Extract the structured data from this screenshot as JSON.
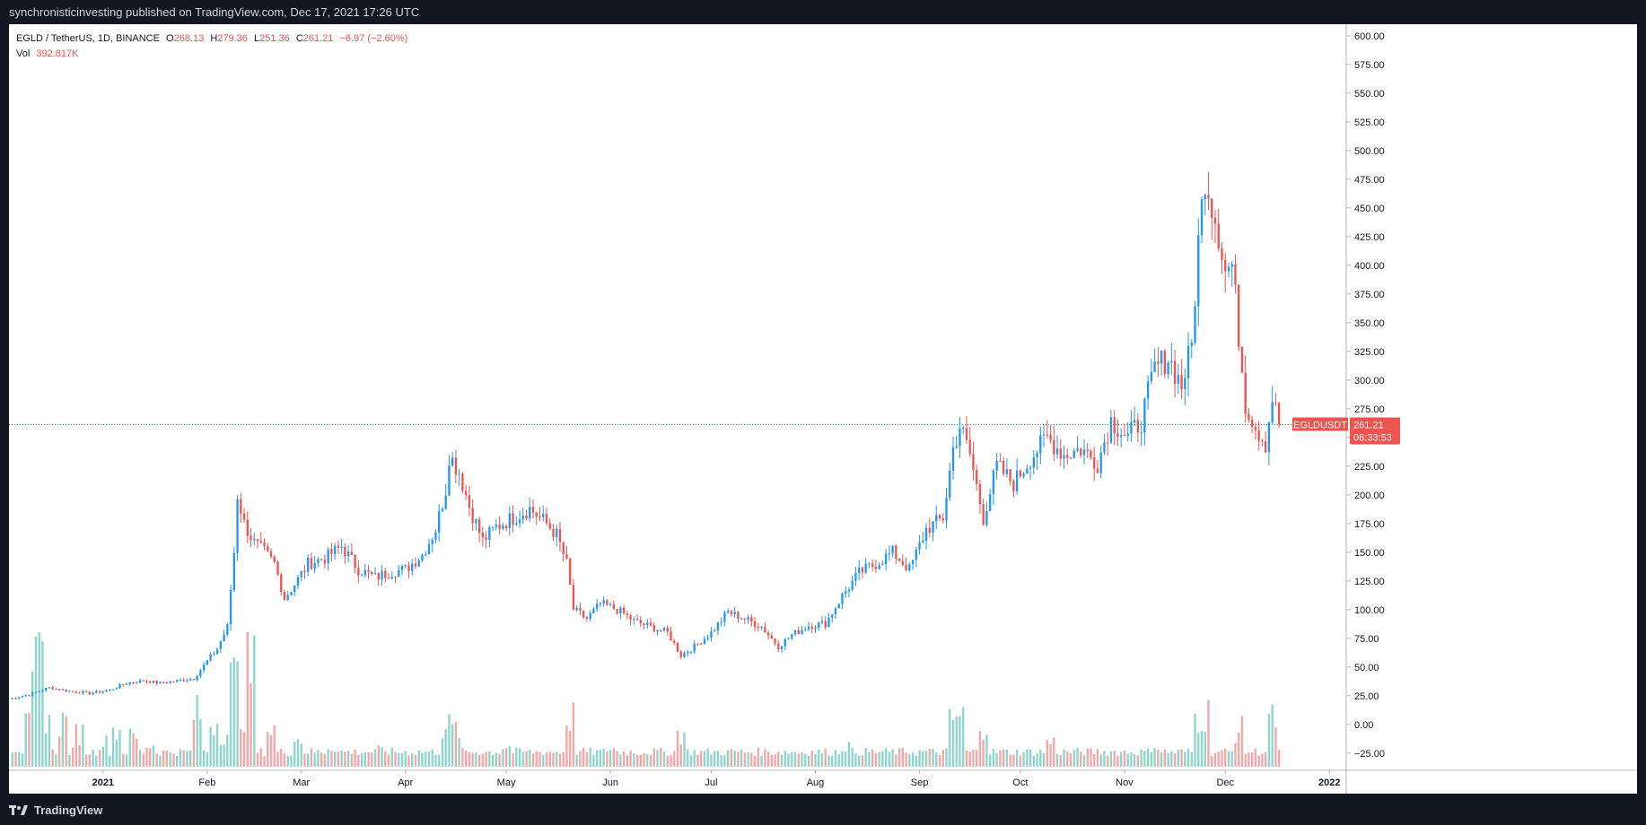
{
  "header": {
    "publisher_text": "synchronisticinvesting published on TradingView.com, Dec 17, 2021 17:26 UTC"
  },
  "footer": {
    "brand": "TradingView",
    "logo_icon": "tradingview-logo-icon"
  },
  "legend": {
    "symbol": "EGLD / TetherUS, 1D, BINANCE",
    "o_label": "O",
    "o_value": "268.13",
    "h_label": "H",
    "h_value": "279.36",
    "l_label": "L",
    "l_value": "251.36",
    "c_label": "C",
    "c_value": "261.21",
    "change": "−6.97 (−2.60%)",
    "vol_label": "Vol",
    "vol_value": "392.817K"
  },
  "price_tag": {
    "label": "EGLDUSDT",
    "price": "261.21",
    "countdown": "06:33:53"
  },
  "chart_data": {
    "type": "candlestick",
    "title": "EGLD / TetherUS, 1D, BINANCE",
    "ylim": [
      -40,
      610
    ],
    "y_ticks": [
      600,
      575,
      550,
      525,
      500,
      475,
      450,
      425,
      400,
      375,
      350,
      325,
      300,
      275,
      250,
      225,
      200,
      175,
      150,
      125,
      100,
      75,
      50,
      25,
      0,
      -25
    ],
    "y_tick_labels": [
      "600.00",
      "575.00",
      "550.00",
      "525.00",
      "500.00",
      "475.00",
      "450.00",
      "425.00",
      "400.00",
      "375.00",
      "350.00",
      "325.00",
      "300.00",
      "275.00",
      "250.00",
      "225.00",
      "200.00",
      "175.00",
      "150.00",
      "125.00",
      "100.00",
      "75.00",
      "50.00",
      "25.00",
      "0.00",
      "−25.00"
    ],
    "x_range": [
      "2020-12-04",
      "2022-01-06"
    ],
    "x_ticks": [
      {
        "label": "2021",
        "date": "2021-01-01"
      },
      {
        "label": "Feb",
        "date": "2021-02-01"
      },
      {
        "label": "Mar",
        "date": "2021-03-01"
      },
      {
        "label": "Apr",
        "date": "2021-04-01"
      },
      {
        "label": "May",
        "date": "2021-05-01"
      },
      {
        "label": "Jun",
        "date": "2021-06-01"
      },
      {
        "label": "Jul",
        "date": "2021-07-01"
      },
      {
        "label": "Aug",
        "date": "2021-08-01"
      },
      {
        "label": "Sep",
        "date": "2021-09-01"
      },
      {
        "label": "Oct",
        "date": "2021-10-01"
      },
      {
        "label": "Nov",
        "date": "2021-11-01"
      },
      {
        "label": "Dec",
        "date": "2021-12-01"
      },
      {
        "label": "2022",
        "date": "2022-01-01"
      }
    ],
    "last_price": 261.21,
    "up_color": "#2196f3",
    "down_color": "#ef5350",
    "volume_up_color": "#8dd5cb",
    "volume_down_color": "#f5a6a6",
    "price_series": {
      "name": "EGLDUSDT",
      "close": [
        [
          "2020-12-04",
          22
        ],
        [
          "2020-12-10",
          26
        ],
        [
          "2020-12-16",
          32
        ],
        [
          "2020-12-22",
          29
        ],
        [
          "2020-12-28",
          27
        ],
        [
          "2021-01-03",
          30
        ],
        [
          "2021-01-08",
          36
        ],
        [
          "2021-01-13",
          38
        ],
        [
          "2021-01-18",
          36
        ],
        [
          "2021-01-23",
          38
        ],
        [
          "2021-01-28",
          40
        ],
        [
          "2021-02-01",
          55
        ],
        [
          "2021-02-04",
          66
        ],
        [
          "2021-02-07",
          85
        ],
        [
          "2021-02-09",
          150
        ],
        [
          "2021-02-10",
          200
        ],
        [
          "2021-02-12",
          175
        ],
        [
          "2021-02-15",
          158
        ],
        [
          "2021-02-18",
          150
        ],
        [
          "2021-02-21",
          140
        ],
        [
          "2021-02-24",
          110
        ],
        [
          "2021-02-27",
          122
        ],
        [
          "2021-03-03",
          140
        ],
        [
          "2021-03-08",
          145
        ],
        [
          "2021-03-13",
          155
        ],
        [
          "2021-03-18",
          135
        ],
        [
          "2021-03-23",
          128
        ],
        [
          "2021-03-28",
          133
        ],
        [
          "2021-04-01",
          135
        ],
        [
          "2021-04-06",
          148
        ],
        [
          "2021-04-10",
          170
        ],
        [
          "2021-04-13",
          205
        ],
        [
          "2021-04-14",
          235
        ],
        [
          "2021-04-17",
          220
        ],
        [
          "2021-04-20",
          190
        ],
        [
          "2021-04-24",
          160
        ],
        [
          "2021-04-28",
          172
        ],
        [
          "2021-05-03",
          180
        ],
        [
          "2021-05-08",
          188
        ],
        [
          "2021-05-13",
          175
        ],
        [
          "2021-05-16",
          165
        ],
        [
          "2021-05-19",
          140
        ],
        [
          "2021-05-21",
          100
        ],
        [
          "2021-05-25",
          92
        ],
        [
          "2021-05-29",
          105
        ],
        [
          "2021-06-03",
          100
        ],
        [
          "2021-06-08",
          90
        ],
        [
          "2021-06-13",
          85
        ],
        [
          "2021-06-18",
          80
        ],
        [
          "2021-06-22",
          60
        ],
        [
          "2021-06-26",
          68
        ],
        [
          "2021-07-01",
          80
        ],
        [
          "2021-07-06",
          98
        ],
        [
          "2021-07-11",
          92
        ],
        [
          "2021-07-16",
          85
        ],
        [
          "2021-07-21",
          68
        ],
        [
          "2021-07-25",
          78
        ],
        [
          "2021-07-30",
          86
        ],
        [
          "2021-08-04",
          88
        ],
        [
          "2021-08-09",
          112
        ],
        [
          "2021-08-14",
          132
        ],
        [
          "2021-08-19",
          140
        ],
        [
          "2021-08-24",
          150
        ],
        [
          "2021-08-29",
          135
        ],
        [
          "2021-09-03",
          170
        ],
        [
          "2021-09-08",
          180
        ],
        [
          "2021-09-11",
          240
        ],
        [
          "2021-09-13",
          260
        ],
        [
          "2021-09-16",
          235
        ],
        [
          "2021-09-20",
          180
        ],
        [
          "2021-09-24",
          225
        ],
        [
          "2021-09-29",
          210
        ],
        [
          "2021-10-04",
          232
        ],
        [
          "2021-10-09",
          250
        ],
        [
          "2021-10-14",
          235
        ],
        [
          "2021-10-19",
          240
        ],
        [
          "2021-10-24",
          228
        ],
        [
          "2021-10-28",
          265
        ],
        [
          "2021-11-02",
          250
        ],
        [
          "2021-11-06",
          265
        ],
        [
          "2021-11-10",
          310
        ],
        [
          "2021-11-14",
          320
        ],
        [
          "2021-11-18",
          295
        ],
        [
          "2021-11-21",
          330
        ],
        [
          "2021-11-23",
          420
        ],
        [
          "2021-11-25",
          480
        ],
        [
          "2021-11-27",
          455
        ],
        [
          "2021-11-29",
          430
        ],
        [
          "2021-12-01",
          395
        ],
        [
          "2021-12-03",
          400
        ],
        [
          "2021-12-05",
          340
        ],
        [
          "2021-12-07",
          280
        ],
        [
          "2021-12-10",
          260
        ],
        [
          "2021-12-13",
          245
        ],
        [
          "2021-12-15",
          285
        ],
        [
          "2021-12-17",
          261.21
        ]
      ]
    },
    "volume_series": {
      "name": "Vol",
      "values": [
        [
          "2020-12-06",
          8
        ],
        [
          "2020-12-10",
          22
        ],
        [
          "2020-12-12",
          40
        ],
        [
          "2020-12-13",
          65
        ],
        [
          "2020-12-15",
          30
        ],
        [
          "2020-12-20",
          25
        ],
        [
          "2020-12-25",
          18
        ],
        [
          "2021-01-01",
          12
        ],
        [
          "2021-01-05",
          20
        ],
        [
          "2021-01-10",
          15
        ],
        [
          "2021-01-15",
          10
        ],
        [
          "2021-01-22",
          6
        ],
        [
          "2021-01-29",
          30
        ],
        [
          "2021-02-03",
          25
        ],
        [
          "2021-02-06",
          18
        ],
        [
          "2021-02-09",
          50
        ],
        [
          "2021-02-12",
          32
        ],
        [
          "2021-02-14",
          58
        ],
        [
          "2021-02-20",
          20
        ],
        [
          "2021-02-28",
          14
        ],
        [
          "2021-03-10",
          9
        ],
        [
          "2021-03-25",
          7
        ],
        [
          "2021-04-13",
          22
        ],
        [
          "2021-04-16",
          20
        ],
        [
          "2021-05-01",
          9
        ],
        [
          "2021-05-20",
          28
        ],
        [
          "2021-06-01",
          8
        ],
        [
          "2021-06-22",
          18
        ],
        [
          "2021-07-15",
          6
        ],
        [
          "2021-08-10",
          10
        ],
        [
          "2021-09-11",
          25
        ],
        [
          "2021-09-13",
          28
        ],
        [
          "2021-09-20",
          24
        ],
        [
          "2021-10-10",
          12
        ],
        [
          "2021-11-10",
          10
        ],
        [
          "2021-11-23",
          28
        ],
        [
          "2021-11-25",
          30
        ],
        [
          "2021-12-05",
          20
        ],
        [
          "2021-12-15",
          26
        ]
      ]
    }
  }
}
